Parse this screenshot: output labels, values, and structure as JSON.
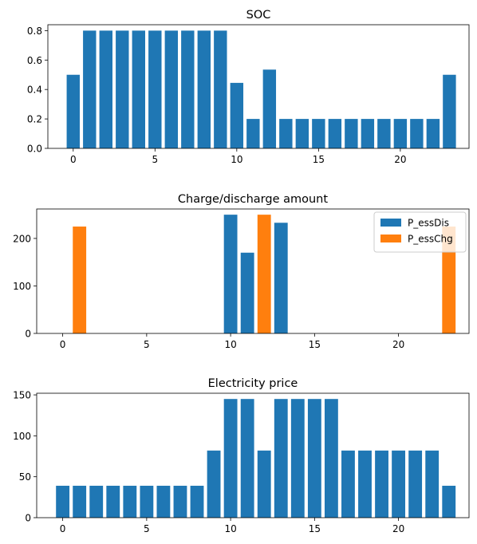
{
  "chart_data": [
    {
      "type": "bar",
      "title": "SOC",
      "x": [
        0,
        1,
        2,
        3,
        4,
        5,
        6,
        7,
        8,
        9,
        10,
        11,
        12,
        13,
        14,
        15,
        16,
        17,
        18,
        19,
        20,
        21,
        22,
        23
      ],
      "series": [
        {
          "name": "",
          "color": "#1f77b4",
          "values": [
            0.5,
            0.8,
            0.8,
            0.8,
            0.8,
            0.8,
            0.8,
            0.8,
            0.8,
            0.8,
            0.445,
            0.2,
            0.535,
            0.2,
            0.2,
            0.2,
            0.2,
            0.2,
            0.2,
            0.2,
            0.2,
            0.2,
            0.2,
            0.5
          ]
        }
      ],
      "xlim": [
        -1.55,
        24.2
      ],
      "ylim": [
        0,
        0.84
      ],
      "xticks": [
        0,
        5,
        10,
        15,
        20
      ],
      "xtick_labels": [
        "0",
        "5",
        "10",
        "15",
        "20"
      ],
      "yticks": [
        0,
        0.2,
        0.4,
        0.6,
        0.8
      ],
      "ytick_labels": [
        "0.0",
        "0.2",
        "0.4",
        "0.6",
        "0.8"
      ],
      "grid": false
    },
    {
      "type": "bar",
      "title": "Charge/discharge amount",
      "x": [
        0,
        1,
        2,
        3,
        4,
        5,
        6,
        7,
        8,
        9,
        10,
        11,
        12,
        13,
        14,
        15,
        16,
        17,
        18,
        19,
        20,
        21,
        22,
        23
      ],
      "series": [
        {
          "name": "P_essDis",
          "color": "#1f77b4",
          "values": [
            0,
            0,
            0,
            0,
            0,
            0,
            0,
            0,
            0,
            0,
            250,
            170,
            0,
            233,
            0,
            0,
            0,
            0,
            0,
            0,
            0,
            0,
            0,
            0
          ]
        },
        {
          "name": "P_essChg",
          "color": "#ff7f0e",
          "values": [
            0,
            225,
            0,
            0,
            0,
            0,
            0,
            0,
            0,
            0,
            0,
            0,
            250,
            0,
            0,
            0,
            0,
            0,
            0,
            0,
            0,
            0,
            0,
            225
          ]
        }
      ],
      "xlim": [
        -1.55,
        24.2
      ],
      "ylim": [
        0,
        262
      ],
      "xticks": [
        0,
        5,
        10,
        15,
        20
      ],
      "xtick_labels": [
        "0",
        "5",
        "10",
        "15",
        "20"
      ],
      "yticks": [
        0,
        100,
        200
      ],
      "ytick_labels": [
        "0",
        "100",
        "200"
      ],
      "grid": false,
      "legend": "top-right"
    },
    {
      "type": "bar",
      "title": "Electricity price",
      "x": [
        0,
        1,
        2,
        3,
        4,
        5,
        6,
        7,
        8,
        9,
        10,
        11,
        12,
        13,
        14,
        15,
        16,
        17,
        18,
        19,
        20,
        21,
        22,
        23
      ],
      "series": [
        {
          "name": "",
          "color": "#1f77b4",
          "values": [
            39,
            39,
            39,
            39,
            39,
            39,
            39,
            39,
            39,
            82,
            145,
            145,
            82,
            145,
            145,
            145,
            145,
            82,
            82,
            82,
            82,
            82,
            82,
            39
          ]
        }
      ],
      "xlim": [
        -1.55,
        24.2
      ],
      "ylim": [
        0,
        152
      ],
      "xticks": [
        0,
        5,
        10,
        15,
        20
      ],
      "xtick_labels": [
        "0",
        "5",
        "10",
        "15",
        "20"
      ],
      "yticks": [
        0,
        50,
        100,
        150
      ],
      "ytick_labels": [
        "0",
        "50",
        "100",
        "150"
      ],
      "grid": false
    }
  ]
}
